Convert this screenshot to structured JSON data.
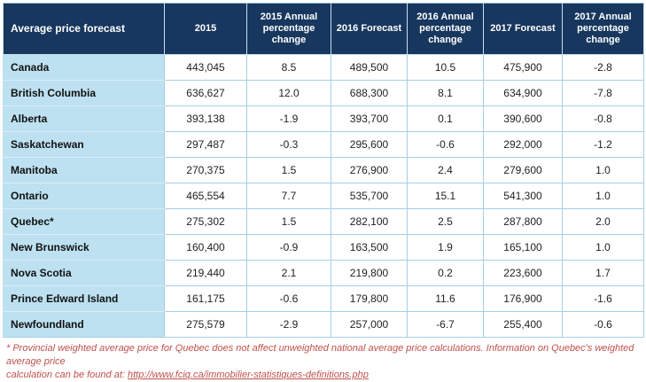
{
  "table": {
    "header": {
      "col0": "Average price forecast",
      "columns": [
        "2015",
        "2015 Annual percentage change",
        "2016 Forecast",
        "2016 Annual percentage change",
        "2017 Forecast",
        "2017 Annual percentage change"
      ]
    },
    "rows": [
      {
        "region": "Canada",
        "values": [
          "443,045",
          "8.5",
          "489,500",
          "10.5",
          "475,900",
          "-2.8"
        ]
      },
      {
        "region": "British Columbia",
        "values": [
          "636,627",
          "12.0",
          "688,300",
          "8.1",
          "634,900",
          "-7.8"
        ]
      },
      {
        "region": "Alberta",
        "values": [
          "393,138",
          "-1.9",
          "393,700",
          "0.1",
          "390,600",
          "-0.8"
        ]
      },
      {
        "region": "Saskatchewan",
        "values": [
          "297,487",
          "-0.3",
          "295,600",
          "-0.6",
          "292,000",
          "-1.2"
        ]
      },
      {
        "region": "Manitoba",
        "values": [
          "270,375",
          "1.5",
          "276,900",
          "2.4",
          "279,600",
          "1.0"
        ]
      },
      {
        "region": "Ontario",
        "values": [
          "465,554",
          "7.7",
          "535,700",
          "15.1",
          "541,300",
          "1.0"
        ]
      },
      {
        "region": "Quebec*",
        "values": [
          "275,302",
          "1.5",
          "282,100",
          "2.5",
          "287,800",
          "2.0"
        ]
      },
      {
        "region": "New Brunswick",
        "values": [
          "160,400",
          "-0.9",
          "163,500",
          "1.9",
          "165,100",
          "1.0"
        ]
      },
      {
        "region": "Nova Scotia",
        "values": [
          "219,440",
          "2.1",
          "219,800",
          "0.2",
          "223,600",
          "1.7"
        ]
      },
      {
        "region": "Prince Edward Island",
        "values": [
          "161,175",
          "-0.6",
          "179,800",
          "11.6",
          "176,900",
          "-1.6"
        ]
      },
      {
        "region": "Newfoundland",
        "values": [
          "275,579",
          "-2.9",
          "257,000",
          "-6.7",
          "255,400",
          "-0.6"
        ]
      }
    ]
  },
  "footnote": {
    "line1": "* Provincial weighted average price for Quebec does not affect unweighted national average price calculations. Information on Quebec's weighted average price",
    "line2_prefix": "calculation can be found at: ",
    "link": "http://www.fciq.ca/immobilier-statistiques-definitions.php"
  },
  "colors": {
    "header_bg": "#17375E",
    "header_text": "#FFFFFF",
    "region_column_bg": "#BDE1F1",
    "gridline": "#A6CEE5",
    "body_text": "#1F1F1F",
    "footnote_text": "#C0504D"
  },
  "chart_data": {
    "type": "table",
    "title": "Average price forecast",
    "categories": [
      "Canada",
      "British Columbia",
      "Alberta",
      "Saskatchewan",
      "Manitoba",
      "Ontario",
      "Quebec*",
      "New Brunswick",
      "Nova Scotia",
      "Prince Edward Island",
      "Newfoundland"
    ],
    "series": [
      {
        "name": "2015",
        "values": [
          443045,
          636627,
          393138,
          297487,
          270375,
          465554,
          275302,
          160400,
          219440,
          161175,
          275579
        ]
      },
      {
        "name": "2015 Annual percentage change",
        "values": [
          8.5,
          12.0,
          -1.9,
          -0.3,
          1.5,
          7.7,
          1.5,
          -0.9,
          2.1,
          -0.6,
          -2.9
        ]
      },
      {
        "name": "2016 Forecast",
        "values": [
          489500,
          688300,
          393700,
          295600,
          276900,
          535700,
          282100,
          163500,
          219800,
          179800,
          257000
        ]
      },
      {
        "name": "2016 Annual percentage change",
        "values": [
          10.5,
          8.1,
          0.1,
          -0.6,
          2.4,
          15.1,
          2.5,
          1.9,
          0.2,
          11.6,
          -6.7
        ]
      },
      {
        "name": "2017 Forecast",
        "values": [
          475900,
          634900,
          390600,
          292000,
          279600,
          541300,
          287800,
          165100,
          223600,
          176900,
          255400
        ]
      },
      {
        "name": "2017 Annual percentage change",
        "values": [
          -2.8,
          -7.8,
          -0.8,
          -1.2,
          1.0,
          1.0,
          2.0,
          1.0,
          1.7,
          -1.6,
          -0.6
        ]
      }
    ],
    "footnote": "* Provincial weighted average price for Quebec does not affect unweighted national average price calculations. Information on Quebec's weighted average price calculation can be found at: http://www.fciq.ca/immobilier-statistiques-definitions.php"
  }
}
